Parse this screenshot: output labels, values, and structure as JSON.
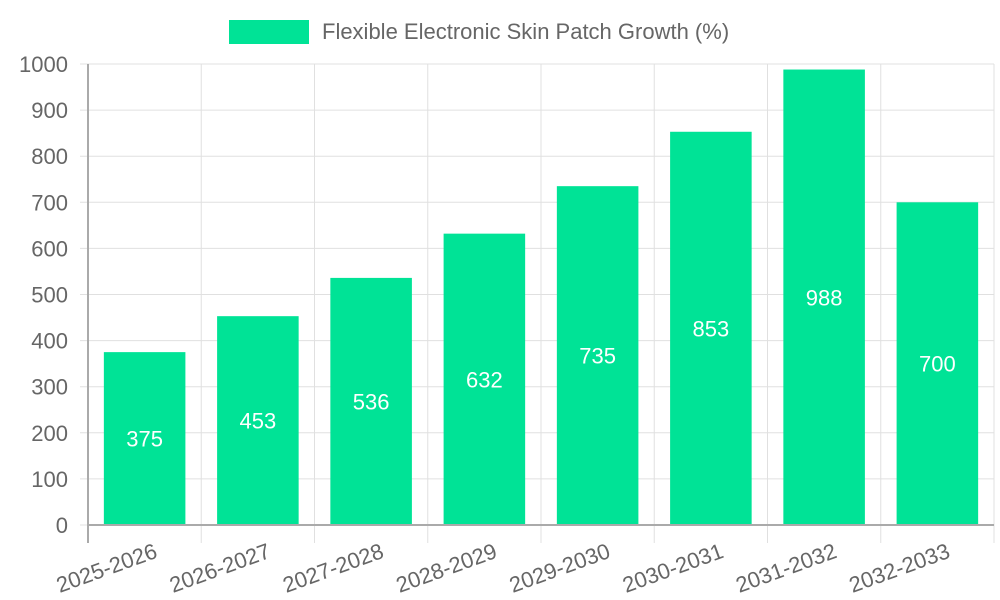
{
  "legend": {
    "label": "Flexible Electronic Skin Patch Growth (%)",
    "color": "#00e396"
  },
  "colors": {
    "bar": "#00e396",
    "grid": "#e0e0e0",
    "axis": "#aaaaaa",
    "tick_text": "#666666",
    "data_label": "#ffffff"
  },
  "chart_data": {
    "type": "bar",
    "title": "",
    "xlabel": "",
    "ylabel": "",
    "categories": [
      "2025-2026",
      "2026-2027",
      "2027-2028",
      "2028-2029",
      "2029-2030",
      "2030-2031",
      "2031-2032",
      "2032-2033"
    ],
    "series": [
      {
        "name": "Flexible Electronic Skin Patch Growth (%)",
        "color": "#00e396",
        "values": [
          375,
          453,
          536,
          632,
          735,
          853,
          988,
          700
        ]
      }
    ],
    "ylim": [
      0,
      1000
    ],
    "yticks": [
      0,
      100,
      200,
      300,
      400,
      500,
      600,
      700,
      800,
      900,
      1000
    ],
    "grid": true,
    "legend_position": "top",
    "data_labels": true,
    "x_tick_rotation": -20
  }
}
